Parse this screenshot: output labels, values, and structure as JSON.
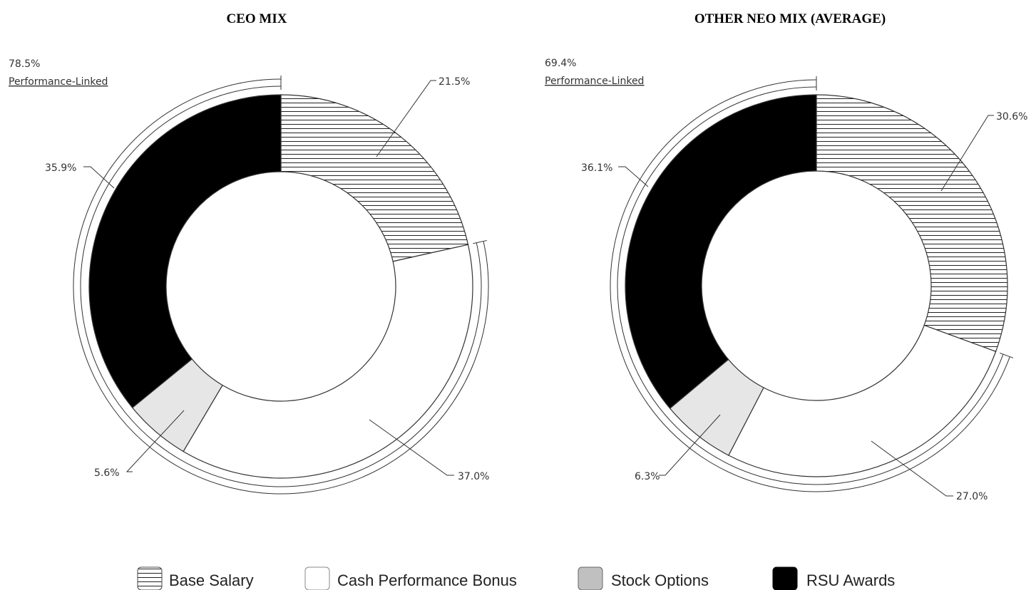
{
  "colors": {
    "base_salary": "hatch",
    "cash_performance_bonus": "#ffffff",
    "stock_options": "#e6e6e6",
    "rsu_awards": "#000000",
    "outline": "#333333"
  },
  "chart_data": [
    {
      "type": "pie",
      "variant": "donut",
      "title": "CEO MIX",
      "categories": [
        "Base Salary",
        "Cash Performance Bonus",
        "Stock Options",
        "RSU Awards"
      ],
      "values": [
        21.5,
        37.0,
        5.6,
        35.9
      ],
      "value_labels": [
        "21.5%",
        "37.0%",
        "5.6%",
        "35.9%"
      ],
      "performance_linked": {
        "value": 78.5,
        "label_value": "78.5%",
        "label": "Performance-Linked"
      }
    },
    {
      "type": "pie",
      "variant": "donut",
      "title": "OTHER NEO MIX (AVERAGE)",
      "categories": [
        "Base Salary",
        "Cash Performance Bonus",
        "Stock Options",
        "RSU Awards"
      ],
      "values": [
        30.6,
        27.0,
        6.3,
        36.1
      ],
      "value_labels": [
        "30.6%",
        "27.0%",
        "6.3%",
        "36.1%"
      ],
      "performance_linked": {
        "value": 69.4,
        "label_value": "69.4%",
        "label": "Performance-Linked"
      }
    }
  ],
  "legend": {
    "items": [
      {
        "label": "Base Salary",
        "swatch": "hatch"
      },
      {
        "label": "Cash Performance Bonus",
        "swatch": "#ffffff"
      },
      {
        "label": "Stock Options",
        "swatch": "#c0c0c0"
      },
      {
        "label": "RSU Awards",
        "swatch": "#000000"
      }
    ]
  }
}
